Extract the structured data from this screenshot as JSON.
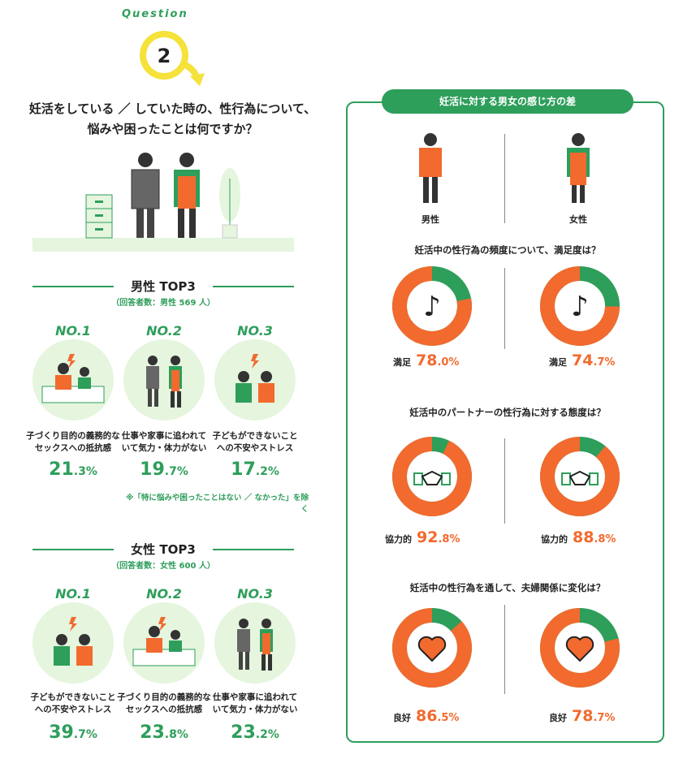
{
  "question": {
    "badge_label": "Question",
    "number": "2",
    "text_line1": "妊活をしている ／ していた時の、性行為について、",
    "text_line2": "悩みや困ったことは何ですか？"
  },
  "male_section": {
    "title": "男性 TOP3",
    "respondents": "（回答者数：男性 569 人）",
    "items": [
      {
        "rank": "NO.1",
        "line1": "子づくり目的の義務的な",
        "line2": "セックスへの抵抗感",
        "pct_int": "21",
        "pct_dec": ".3%"
      },
      {
        "rank": "NO.2",
        "line1": "仕事や家事に追われて",
        "line2": "いて気力・体力がない",
        "pct_int": "19",
        "pct_dec": ".7%"
      },
      {
        "rank": "NO.3",
        "line1": "子どもができないこと",
        "line2": "への不安やストレス",
        "pct_int": "17",
        "pct_dec": ".2%"
      }
    ],
    "note": "※「特に悩みや困ったことはない ／ なかった」を除く"
  },
  "female_section": {
    "title": "女性 TOP3",
    "respondents": "（回答者数：女性 600 人）",
    "items": [
      {
        "rank": "NO.1",
        "line1": "子どもができないこと",
        "line2": "への不安やストレス",
        "pct_int": "39",
        "pct_dec": ".7%"
      },
      {
        "rank": "NO.2",
        "line1": "子づくり目的の義務的な",
        "line2": "セックスへの抵抗感",
        "pct_int": "23",
        "pct_dec": ".8%"
      },
      {
        "rank": "NO.3",
        "line1": "仕事や家事に追われて",
        "line2": "いて気力・体力がない",
        "pct_int": "23",
        "pct_dec": ".2%"
      }
    ]
  },
  "panel": {
    "title": "妊活に対する男女の感じ方の差",
    "male_label": "男性",
    "female_label": "女性",
    "questions": [
      {
        "text": "妊活中の性行為の頻度について、満足度は？",
        "icon": "music-note-icon",
        "male": {
          "label": "満足",
          "pct_int": "78",
          "pct_dec": ".0%",
          "value": 78.0
        },
        "female": {
          "label": "満足",
          "pct_int": "74",
          "pct_dec": ".7%",
          "value": 74.7
        }
      },
      {
        "text": "妊活中のパートナーの性行為に対する態度は？",
        "icon": "handshake-icon",
        "male": {
          "label": "協力的",
          "pct_int": "92",
          "pct_dec": ".8%",
          "value": 92.8
        },
        "female": {
          "label": "協力的",
          "pct_int": "88",
          "pct_dec": ".8%",
          "value": 88.8
        }
      },
      {
        "text": "妊活中の性行為を通して、夫婦関係に変化は？",
        "icon": "heart-icon",
        "male": {
          "label": "良好",
          "pct_int": "86",
          "pct_dec": ".5%",
          "value": 86.5
        },
        "female": {
          "label": "良好",
          "pct_int": "78",
          "pct_dec": ".7%",
          "value": 78.7
        }
      }
    ]
  },
  "colors": {
    "green": "#2e9e5b",
    "orange": "#f26a2e",
    "light_green": "#e5f5de",
    "yellow": "#f5e23a"
  }
}
